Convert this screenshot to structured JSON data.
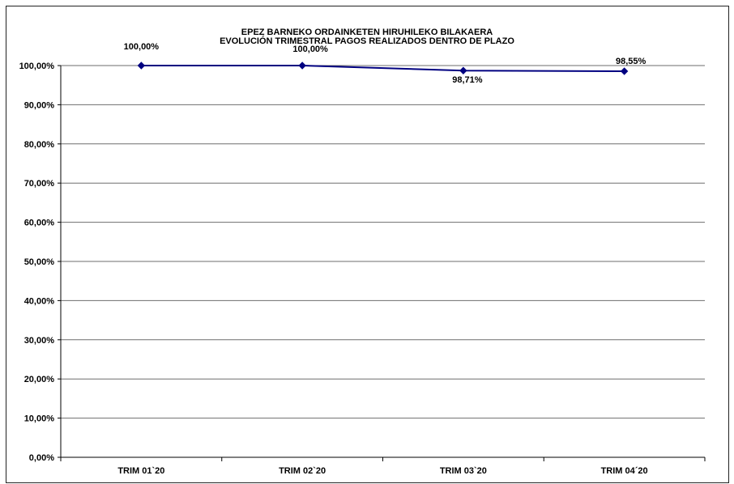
{
  "chart_data": {
    "type": "line",
    "title": "EPEZ BARNEKO ORDAINKETEN HIRUHILEKO BILAKAERA",
    "subtitle": "EVOLUCIÓN TRIMESTRAL PAGOS REALIZADOS DENTRO DE PLAZO",
    "categories": [
      "TRIM 01`20",
      "TRIM 02`20",
      "TRIM 03`20",
      "TRIM 04´20"
    ],
    "values": [
      100.0,
      100.0,
      98.71,
      98.55
    ],
    "data_labels": [
      "100,00%",
      "100,00%",
      "98,71%",
      "98,55%"
    ],
    "y_ticks": [
      "0,00%",
      "10,00%",
      "20,00%",
      "30,00%",
      "40,00%",
      "50,00%",
      "60,00%",
      "70,00%",
      "80,00%",
      "90,00%",
      "100,00%"
    ],
    "ylim": [
      0,
      100
    ],
    "grid": true,
    "legend": "none",
    "series_color": "#000080"
  }
}
